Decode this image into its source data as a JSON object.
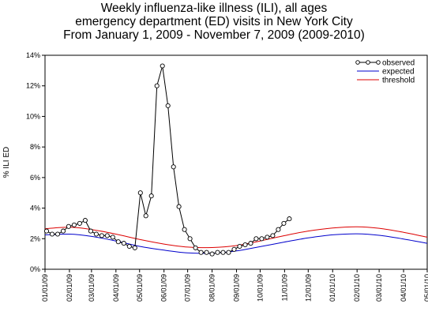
{
  "colors": {
    "observed": "#000000",
    "expected": "#0000cc",
    "threshold": "#dd0000",
    "axis": "#000000",
    "background": "#ffffff"
  },
  "chart_data": {
    "type": "line",
    "title_lines": [
      "Weekly influenza-like illness (ILI), all ages",
      "emergency department (ED) visits in New York City",
      "From January 1, 2009 - November 7, 2009 (2009-2010)"
    ],
    "ylabel": "% ILI ED",
    "xlabel": "",
    "ylim": [
      0,
      14
    ],
    "yticks": [
      0,
      2,
      4,
      6,
      8,
      10,
      12,
      14
    ],
    "ytick_labels": [
      "0%",
      "2%",
      "4%",
      "6%",
      "8%",
      "10%",
      "12%",
      "14%"
    ],
    "xlim": [
      "2009-01-01",
      "2010-05-01"
    ],
    "xticks": [
      "2009-01-01",
      "2009-02-01",
      "2009-03-01",
      "2009-04-01",
      "2009-05-01",
      "2009-06-01",
      "2009-07-01",
      "2009-08-01",
      "2009-09-01",
      "2009-10-01",
      "2009-11-01",
      "2009-12-01",
      "2010-01-01",
      "2010-02-01",
      "2010-03-01",
      "2010-04-01",
      "2010-05-01"
    ],
    "xtick_labels": [
      "01/01/09",
      "02/01/09",
      "03/01/09",
      "04/01/09",
      "05/01/09",
      "06/01/09",
      "07/01/09",
      "08/01/09",
      "09/01/09",
      "10/01/09",
      "11/01/09",
      "12/01/09",
      "01/01/10",
      "02/01/10",
      "03/01/10",
      "04/01/10",
      "05/01/10"
    ],
    "grid": false,
    "legend_position": "top-right",
    "series": [
      {
        "name": "observed",
        "style": "line-with-circles",
        "points": [
          [
            "2009-01-03",
            2.5
          ],
          [
            "2009-01-10",
            2.3
          ],
          [
            "2009-01-17",
            2.3
          ],
          [
            "2009-01-24",
            2.5
          ],
          [
            "2009-01-31",
            2.8
          ],
          [
            "2009-02-07",
            2.9
          ],
          [
            "2009-02-14",
            3.0
          ],
          [
            "2009-02-21",
            3.2
          ],
          [
            "2009-02-28",
            2.5
          ],
          [
            "2009-03-07",
            2.3
          ],
          [
            "2009-03-14",
            2.2
          ],
          [
            "2009-03-21",
            2.2
          ],
          [
            "2009-03-28",
            2.1
          ],
          [
            "2009-04-04",
            1.8
          ],
          [
            "2009-04-11",
            1.7
          ],
          [
            "2009-04-18",
            1.5
          ],
          [
            "2009-04-25",
            1.4
          ],
          [
            "2009-05-02",
            5.0
          ],
          [
            "2009-05-09",
            3.5
          ],
          [
            "2009-05-16",
            4.8
          ],
          [
            "2009-05-23",
            12.0
          ],
          [
            "2009-05-30",
            13.3
          ],
          [
            "2009-06-06",
            10.7
          ],
          [
            "2009-06-13",
            6.7
          ],
          [
            "2009-06-20",
            4.1
          ],
          [
            "2009-06-27",
            2.6
          ],
          [
            "2009-07-04",
            2.0
          ],
          [
            "2009-07-11",
            1.4
          ],
          [
            "2009-07-18",
            1.1
          ],
          [
            "2009-07-25",
            1.1
          ],
          [
            "2009-08-01",
            1.0
          ],
          [
            "2009-08-08",
            1.1
          ],
          [
            "2009-08-15",
            1.1
          ],
          [
            "2009-08-22",
            1.1
          ],
          [
            "2009-08-29",
            1.3
          ],
          [
            "2009-09-05",
            1.5
          ],
          [
            "2009-09-12",
            1.6
          ],
          [
            "2009-09-19",
            1.7
          ],
          [
            "2009-09-26",
            2.0
          ],
          [
            "2009-10-03",
            2.0
          ],
          [
            "2009-10-10",
            2.1
          ],
          [
            "2009-10-17",
            2.2
          ],
          [
            "2009-10-24",
            2.6
          ],
          [
            "2009-10-31",
            3.0
          ],
          [
            "2009-11-07",
            3.3
          ]
        ]
      },
      {
        "name": "expected",
        "style": "line",
        "points": [
          [
            "2009-01-01",
            2.25
          ],
          [
            "2009-02-01",
            2.3
          ],
          [
            "2009-03-01",
            2.15
          ],
          [
            "2009-04-01",
            1.85
          ],
          [
            "2009-05-01",
            1.5
          ],
          [
            "2009-06-01",
            1.25
          ],
          [
            "2009-07-01",
            1.07
          ],
          [
            "2009-08-01",
            1.05
          ],
          [
            "2009-09-01",
            1.2
          ],
          [
            "2009-10-01",
            1.48
          ],
          [
            "2009-11-01",
            1.78
          ],
          [
            "2009-12-01",
            2.05
          ],
          [
            "2010-01-01",
            2.25
          ],
          [
            "2010-02-01",
            2.32
          ],
          [
            "2010-03-01",
            2.22
          ],
          [
            "2010-04-01",
            1.98
          ],
          [
            "2010-05-01",
            1.7
          ]
        ]
      },
      {
        "name": "threshold",
        "style": "line",
        "points": [
          [
            "2009-01-01",
            2.65
          ],
          [
            "2009-02-01",
            2.75
          ],
          [
            "2009-03-01",
            2.6
          ],
          [
            "2009-04-01",
            2.3
          ],
          [
            "2009-05-01",
            1.95
          ],
          [
            "2009-06-01",
            1.65
          ],
          [
            "2009-07-01",
            1.45
          ],
          [
            "2009-08-01",
            1.42
          ],
          [
            "2009-09-01",
            1.55
          ],
          [
            "2009-10-01",
            1.85
          ],
          [
            "2009-11-01",
            2.2
          ],
          [
            "2009-12-01",
            2.5
          ],
          [
            "2010-01-01",
            2.7
          ],
          [
            "2010-02-01",
            2.78
          ],
          [
            "2010-03-01",
            2.68
          ],
          [
            "2010-04-01",
            2.42
          ],
          [
            "2010-05-01",
            2.1
          ]
        ]
      }
    ]
  }
}
